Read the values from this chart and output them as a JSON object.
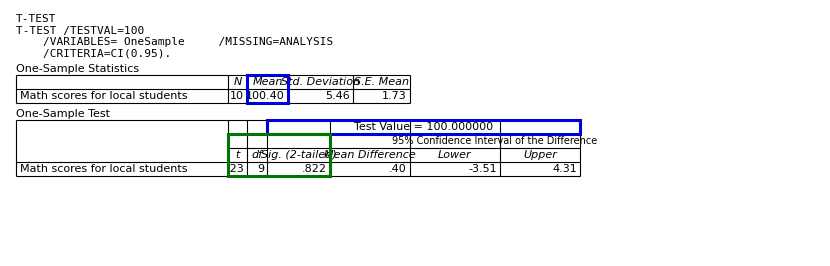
{
  "title_line": "T-TEST",
  "syntax_lines": [
    "T-TEST /TESTVAL=100",
    "    /VARIABLES= OneSample     /MISSING=ANALYSIS",
    "    /CRITERIA=CI(0.95)."
  ],
  "stats_title": "One-Sample Statistics",
  "stats_row": [
    "Math scores for local students",
    "10",
    "100.40",
    "5.46",
    "1.73"
  ],
  "test_title": "One-Sample Test",
  "test_value_label": "Test Value = 100.000000",
  "test_row": [
    "Math scores for local students",
    ".23",
    "9",
    ".822",
    ".40",
    "-3.51",
    "4.31"
  ],
  "blue_box_color": "#0000DD",
  "green_box_color": "#007700",
  "bg_color": "#FFFFFF"
}
